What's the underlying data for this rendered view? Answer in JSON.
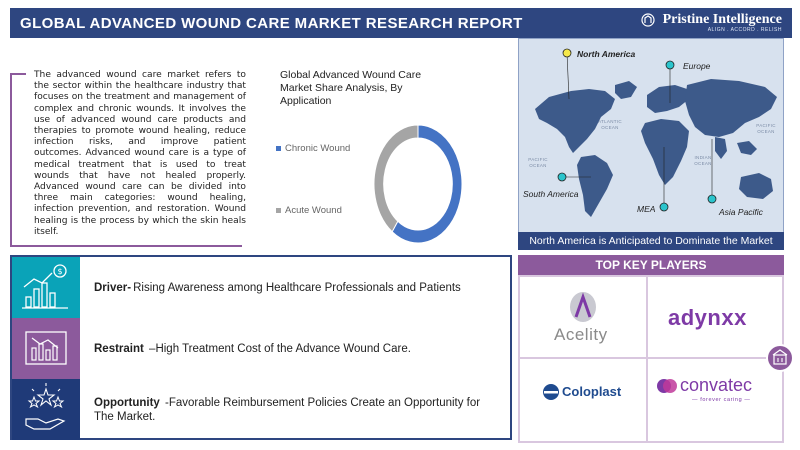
{
  "header": {
    "title": "GLOBAL ADVANCED WOUND CARE MARKET RESEARCH REPORT",
    "brand_name": "Pristine Intelligence",
    "brand_tagline": "ALIGN . ACCORD . RELISH"
  },
  "intro": {
    "text": "The advanced wound care market refers to the sector within the healthcare industry that focuses on the treatment and management of complex and chronic wounds. It involves the use of advanced wound care products and therapies to promote wound healing, reduce infection risks, and improve patient outcomes. Advanced wound care is a type of medical treatment that is used to treat wounds that have not healed properly. Advanced wound care can be divided into three main categories: wound healing, infection prevention, and restoration. Wound healing is the process by which the skin heals itself."
  },
  "chart_data": {
    "type": "pie",
    "title": "Global Advanced Wound Care Market Share Analysis, By Application",
    "series": [
      {
        "name": "Chronic Wound",
        "value": 60,
        "color": "#4473c4"
      },
      {
        "name": "Acute Wound",
        "value": 40,
        "color": "#a5a5a5"
      }
    ],
    "legend": "left",
    "donut": true
  },
  "map": {
    "regions": [
      {
        "name": "North America",
        "bold": true,
        "marker_color": "#f5e84a"
      },
      {
        "name": "Europe",
        "bold": false,
        "marker_color": "#2bc4cc"
      },
      {
        "name": "South America",
        "bold": false,
        "marker_color": "#2bc4cc"
      },
      {
        "name": "MEA",
        "bold": false,
        "marker_color": "#2bc4cc"
      },
      {
        "name": "Asia Pacific",
        "bold": false,
        "marker_color": "#2bc4cc"
      }
    ],
    "oceans": {
      "atlantic": "ATLANTIC OCEAN",
      "pacific_right": "PACIFIC OCEAN",
      "pacific_left": "PACIFIC OCEAN",
      "indian": "INDIAN OCEAN"
    },
    "caption": "North America is Anticipated to Dominate the Market"
  },
  "drivers": {
    "driver": {
      "label": "Driver-",
      "text": "Rising Awareness among Healthcare Professionals and Patients"
    },
    "restraint": {
      "label": "Restraint",
      "text": " –High Treatment Cost of the Advance Wound Care."
    },
    "opportunity": {
      "label": "Opportunity",
      "text": " -Favorable Reimbursement Policies Create an Opportunity for The Market."
    }
  },
  "key_players": {
    "title": "TOP KEY PLAYERS",
    "companies": [
      {
        "name": "Acelity"
      },
      {
        "name": "adynxx"
      },
      {
        "name": "Coloplast"
      },
      {
        "name": "convatec",
        "tagline": "— forever caring —"
      }
    ]
  },
  "colors": {
    "navy": "#2e4680",
    "purple": "#8c5a9c",
    "teal": "#0aa3b8",
    "lavender": "#a27bb0",
    "driver_bg": "#1f3a78"
  }
}
